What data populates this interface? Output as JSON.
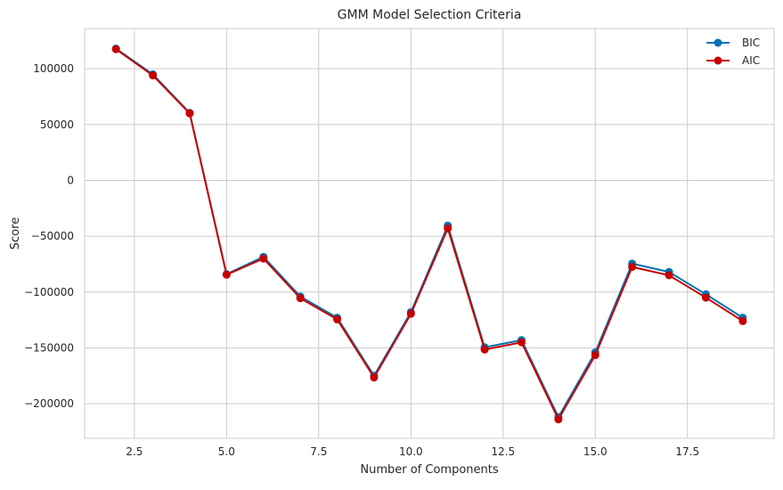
{
  "chart_data": {
    "type": "line",
    "title": "GMM Model Selection Criteria",
    "xlabel": "Number of Components",
    "ylabel": "Score",
    "xlim": [
      1.15,
      19.85
    ],
    "ylim": [
      -231000,
      136000
    ],
    "xticks": [
      2.5,
      5.0,
      7.5,
      10.0,
      12.5,
      15.0,
      17.5
    ],
    "xtick_labels": [
      "2.5",
      "5.0",
      "7.5",
      "10.0",
      "12.5",
      "15.0",
      "17.5"
    ],
    "yticks": [
      100000,
      50000,
      0,
      -50000,
      -100000,
      -150000,
      -200000
    ],
    "ytick_labels": [
      "100000",
      "50000",
      "0",
      "−50000",
      "−100000",
      "−150000",
      "−200000"
    ],
    "grid": true,
    "legend_position": "top-right",
    "x": [
      2,
      3,
      4,
      5,
      6,
      7,
      8,
      9,
      10,
      11,
      12,
      13,
      14,
      15,
      16,
      17,
      18,
      19
    ],
    "series": [
      {
        "name": "BIC",
        "color": "#0072b2",
        "values": [
          118000,
          95000,
          60500,
          -84000,
          -68500,
          -104000,
          -123000,
          -175000,
          -118000,
          -40500,
          -149500,
          -143000,
          -212000,
          -154000,
          -74500,
          -82000,
          -102000,
          -123000
        ]
      },
      {
        "name": "AIC",
        "color": "#c80000",
        "values": [
          117500,
          94000,
          60000,
          -84500,
          -70000,
          -105500,
          -124500,
          -176500,
          -119500,
          -43000,
          -151500,
          -145000,
          -214000,
          -156500,
          -77500,
          -85000,
          -105000,
          -126000
        ]
      }
    ]
  }
}
